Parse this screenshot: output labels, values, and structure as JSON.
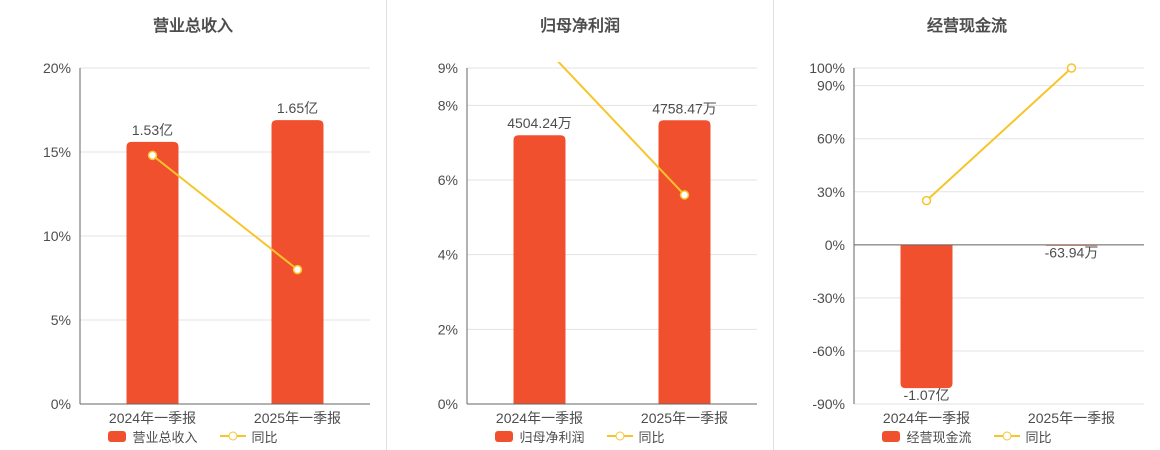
{
  "page": {
    "background": "#ffffff"
  },
  "colors": {
    "background": "#ffffff",
    "bar": "#f0502d",
    "line": "#f7c52b",
    "title": "#4d4d4d",
    "axis_label": "#4d4d4d",
    "bar_label": "#4d4d4d",
    "legend_text": "#4d4d4d",
    "grid": "#e3e3e3",
    "axis_line": "#666666",
    "divider": "#e0e0e0"
  },
  "chart_data": [
    {
      "type": "bar",
      "title": "营业总收入",
      "categories": [
        "2024年一季报",
        "2025年一季报"
      ],
      "bar_series": {
        "name": "营业总收入",
        "value_labels": [
          "1.53亿",
          "1.65亿"
        ],
        "heights_axis_pct": [
          15.6,
          16.9
        ]
      },
      "line_series": {
        "name": "同比",
        "values_pct": [
          14.8,
          8.0
        ]
      },
      "ylim": [
        0,
        20
      ],
      "yticks": [
        0,
        5,
        10,
        15,
        20
      ],
      "ytick_labels": [
        "0%",
        "5%",
        "10%",
        "15%",
        "20%"
      ],
      "grid": true,
      "legend_position": "bottom"
    },
    {
      "type": "bar",
      "title": "归母净利润",
      "categories": [
        "2024年一季报",
        "2025年一季报"
      ],
      "bar_series": {
        "name": "归母净利润",
        "value_labels": [
          "4504.24万",
          "4758.47万"
        ],
        "heights_axis_pct": [
          7.2,
          7.6
        ]
      },
      "line_series": {
        "name": "同比",
        "values_pct": [
          9.7,
          5.6
        ]
      },
      "ylim": [
        0,
        9
      ],
      "yticks": [
        0,
        2,
        4,
        6,
        8,
        9
      ],
      "ytick_labels": [
        "0%",
        "2%",
        "4%",
        "6%",
        "8%",
        "9%"
      ],
      "grid": true,
      "legend_position": "bottom"
    },
    {
      "type": "bar",
      "title": "经营现金流",
      "categories": [
        "2024年一季报",
        "2025年一季报"
      ],
      "bar_series": {
        "name": "经营现金流",
        "value_labels": [
          "-1.07亿",
          "-63.94万"
        ],
        "heights_axis_pct": [
          -81,
          -0.5
        ]
      },
      "line_series": {
        "name": "同比",
        "values_pct": [
          25,
          100
        ]
      },
      "ylim": [
        -90,
        100
      ],
      "yticks": [
        -90,
        -60,
        -30,
        0,
        30,
        60,
        90,
        100
      ],
      "ytick_labels": [
        "-90%",
        "-60%",
        "-30%",
        "0%",
        "30%",
        "60%",
        "90%",
        "100%"
      ],
      "grid": true,
      "legend_position": "bottom"
    }
  ]
}
